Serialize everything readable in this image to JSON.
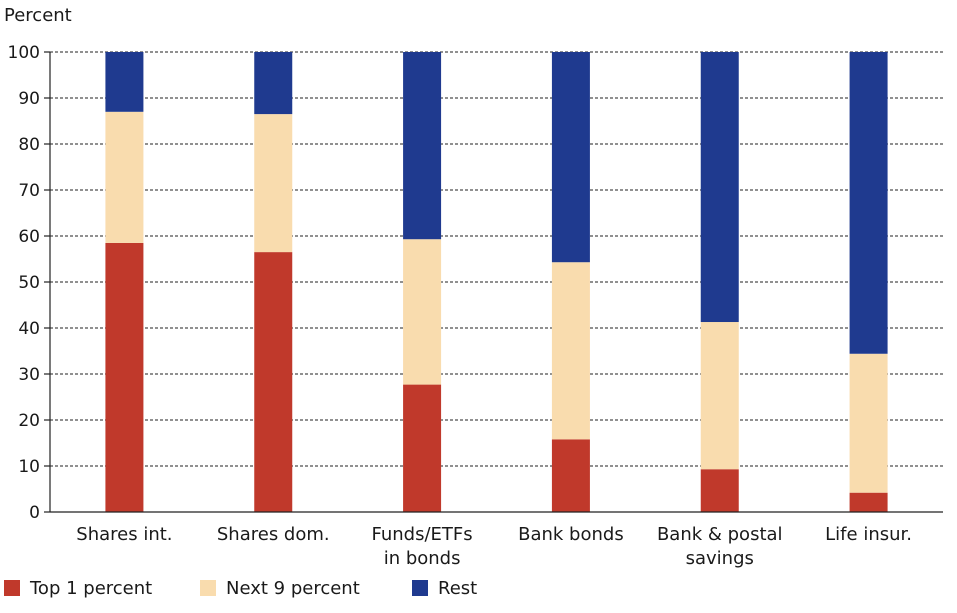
{
  "chart_data": {
    "type": "bar",
    "stacked": true,
    "unit_label": "Percent",
    "categories": [
      [
        "Shares int."
      ],
      [
        "Shares dom."
      ],
      [
        "Funds/ETFs",
        "in bonds"
      ],
      [
        "Bank bonds"
      ],
      [
        "Bank & postal",
        "savings"
      ],
      [
        "Life insur."
      ]
    ],
    "series": [
      {
        "name": "Top 1 percent",
        "color": "#c0392b",
        "values": [
          58.5,
          56.5,
          27.7,
          15.8,
          9.3,
          4.2
        ]
      },
      {
        "name": "Next 9 percent",
        "color": "#f9dcae",
        "values": [
          28.5,
          30.0,
          31.6,
          38.5,
          32.0,
          30.2
        ]
      },
      {
        "name": "Rest",
        "color": "#1f3a8f",
        "values": [
          13.0,
          13.5,
          40.7,
          45.7,
          58.7,
          65.6
        ]
      }
    ],
    "ylim": [
      0,
      100
    ],
    "yticks": [
      0,
      10,
      20,
      30,
      40,
      50,
      60,
      70,
      80,
      90,
      100
    ],
    "grid": true,
    "legend_position": "bottom-left"
  }
}
